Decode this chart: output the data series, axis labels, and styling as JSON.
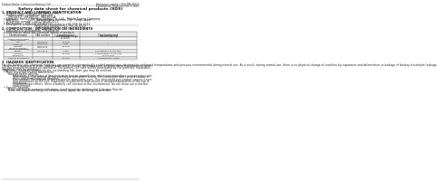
{
  "bg_color": "#ffffff",
  "header_left": "Product Name: Lithium Ion Battery Cell",
  "header_right_line1": "Reference number: SDS-MB-00010",
  "header_right_line2": "Established / Revision: Dec.7.2016",
  "title": "Safety data sheet for chemical products (SDS)",
  "section1_title": "1. PRODUCT AND COMPANY IDENTIFICATION",
  "section1_lines": [
    "  • Product name: Lithium Ion Battery Cell",
    "  • Product code: Cylindrical type cell",
    "       ISR18650J, ISR18650L, ISR18650A",
    "  • Company name:   Ikenagy Energy Co., Ltd.,  Mobile Energy Company",
    "  • Address:           2021  Kamotakami, Sumoto City, Hyogo, Japan",
    "  • Telephone number:  +81-799-26-4111",
    "  • Fax number:  +81-799-26-4120",
    "  • Emergency telephone number (Weekdays) +81-799-26-2062",
    "                                    (Night and holiday) +81-799-26-4120"
  ],
  "section2_title": "2. COMPOSITION / INFORMATION ON INGREDIENTS",
  "section2_sub": "  • Substance or preparation:  Preparation",
  "section2_table_title": "  • Information about the chemical nature of product:",
  "table_headers": [
    "Chemical name",
    "CAS number",
    "Concentration /\nConcentration range\n(0-100%)",
    "Classification and\nhazard labeling"
  ],
  "table_rows": [
    [
      "Lithium metal oxide\n(LiMn/CoNiO4)",
      "-",
      "-",
      "-"
    ],
    [
      "Iron",
      "7439-89-6",
      "16-25%",
      "-"
    ],
    [
      "Aluminum",
      "7429-90-5",
      "2-6%",
      "-"
    ],
    [
      "Graphite\n(Black graphite I\n(Artificial graphite))",
      "7782-42-5\n7782-44-0",
      "10-20%",
      "-"
    ],
    [
      "Copper",
      "7440-50-8",
      "5-10%",
      "Sensitization of the skin"
    ],
    [
      "Insoluble\nelectrolyte",
      "-",
      "10-25%",
      "Classification of the skin\ngroup: R42"
    ],
    [
      "Organic electrolyte",
      "-",
      "10-20%",
      "Inflammation liquid"
    ]
  ],
  "section3_title": "3. HAZARDS IDENTIFICATION",
  "section3_text": "For this battery cell, chemical materials are stored in a hermetically sealed metal case, designed to withstand temperatures and pressure environmental during normal use. As a result, during normal use, there is no physical change of condition by expansion and deformation or leakage of battery electrolyte leakage.\n  However, if exposed to a fire, added mechanical shocks, decompressed, ambient abnormal situations arise,\nthe gas involves enclosed (or operated). The battery cell case will be penetrated by the particles, hazardous\nmaterials may be released.\n  Moreover, if heated strongly by the surrounding fire, toxic gas may be emitted.",
  "hazard_effects_title": "  • Most important hazard and effects:",
  "human_health_title": "       Human health effects:",
  "inhalation_text": "            Inhalation: The release of the electrolyte has an anaesthesia action and stimulates a respiratory tract.\n            Skin contact: The release of the electrolyte stimulates a skin. The electrolyte skin contact causes a\n            sores and stimulation on the skin.\n            Eye contact: The release of the electrolyte stimulates eyes. The electrolyte eye contact causes a sore\n            and stimulation on the eye. Especially, a substance that causes a strong inflammation of the eye is\n            contained.",
  "env_effects_text": "            Environmental effects: Since a battery cell remains in the environment, do not throw out it into the\n            environment.",
  "specific_hazards_title": "  • Specific hazards:",
  "specific_hazards_text": "       If the electrolyte contacts with water, it will generate detrimental hydrogen fluoride.\n       Since the liquid electrolyte is inflammation liquid, do not bring close to fire."
}
